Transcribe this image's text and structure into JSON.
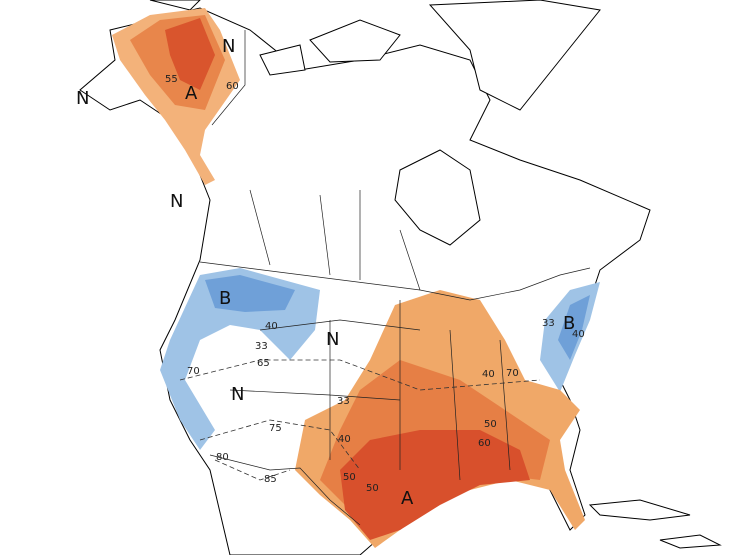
{
  "labels": [
    "N",
    "N",
    "A",
    "55",
    "60",
    "N",
    "B",
    "40",
    "33",
    "65",
    "N",
    "70",
    "N",
    "33",
    "75",
    "80",
    "85",
    "40",
    "50",
    "50",
    "A",
    "60",
    "50",
    "40",
    "70",
    "33",
    "B",
    "40"
  ]
}
